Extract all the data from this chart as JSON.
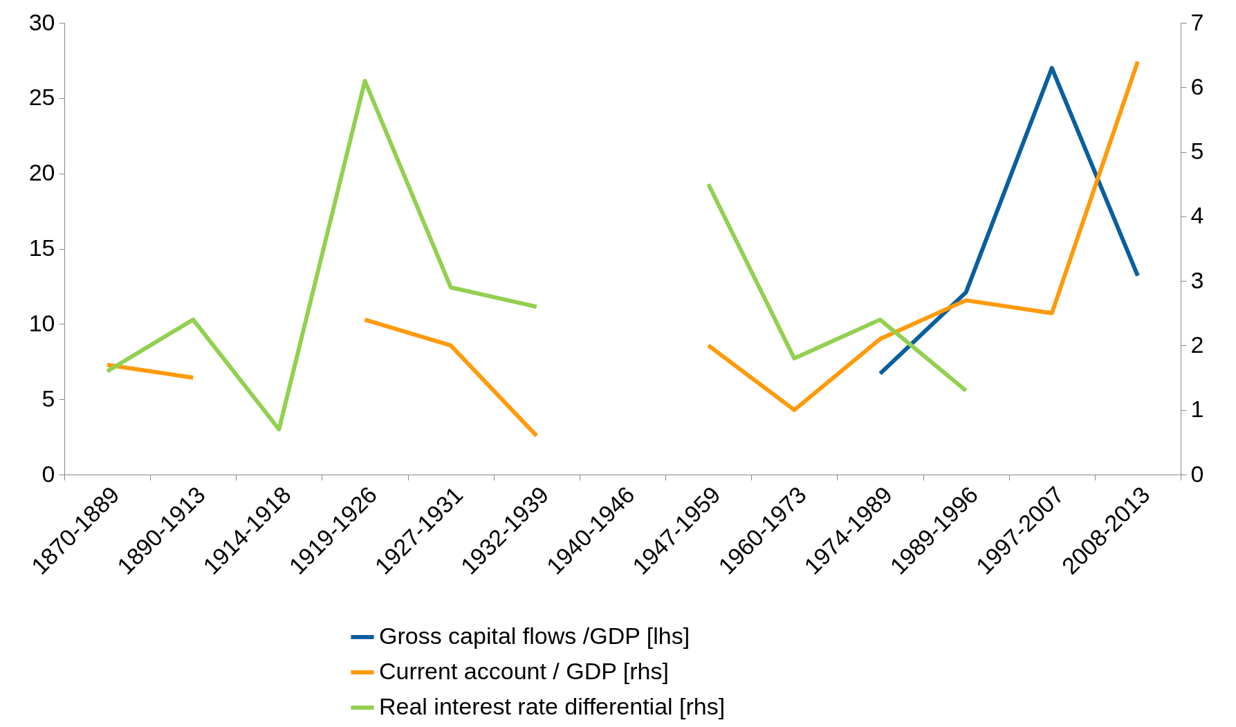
{
  "chart_data": {
    "type": "line",
    "categories": [
      "1870-1889",
      "1890-1913",
      "1914-1918",
      "1919-1926",
      "1927-1931",
      "1932-1939",
      "1940-1946",
      "1947-1959",
      "1960-1973",
      "1974-1989",
      "1989-1996",
      "1997-2007",
      "2008-2013"
    ],
    "series": [
      {
        "name": "Gross capital flows /GDP [lhs]",
        "color": "#0a5f9e",
        "values": [
          null,
          null,
          null,
          null,
          null,
          null,
          null,
          null,
          null,
          6.7,
          12.1,
          27.0,
          13.2
        ]
      },
      {
        "name": "Current account / GDP [rhs]",
        "color": "#ff9a0a",
        "axis": "y2",
        "values": [
          1.7,
          1.5,
          null,
          2.4,
          2.0,
          0.6,
          null,
          2.0,
          1.0,
          2.1,
          2.7,
          2.5,
          6.4
        ]
      },
      {
        "name": "Real interest rate differential [rhs]",
        "color": "#92d050",
        "axis": "y2",
        "values": [
          1.6,
          2.4,
          0.7,
          6.1,
          2.9,
          2.6,
          null,
          4.5,
          1.8,
          2.4,
          1.3,
          null,
          null
        ]
      }
    ],
    "ylim": [
      0,
      30
    ],
    "yticks": [
      0,
      5,
      10,
      15,
      20,
      25,
      30
    ],
    "y2lim": [
      0,
      7
    ],
    "y2ticks": [
      0,
      1,
      2,
      3,
      4,
      5,
      6,
      7
    ],
    "legend": "bottom"
  }
}
